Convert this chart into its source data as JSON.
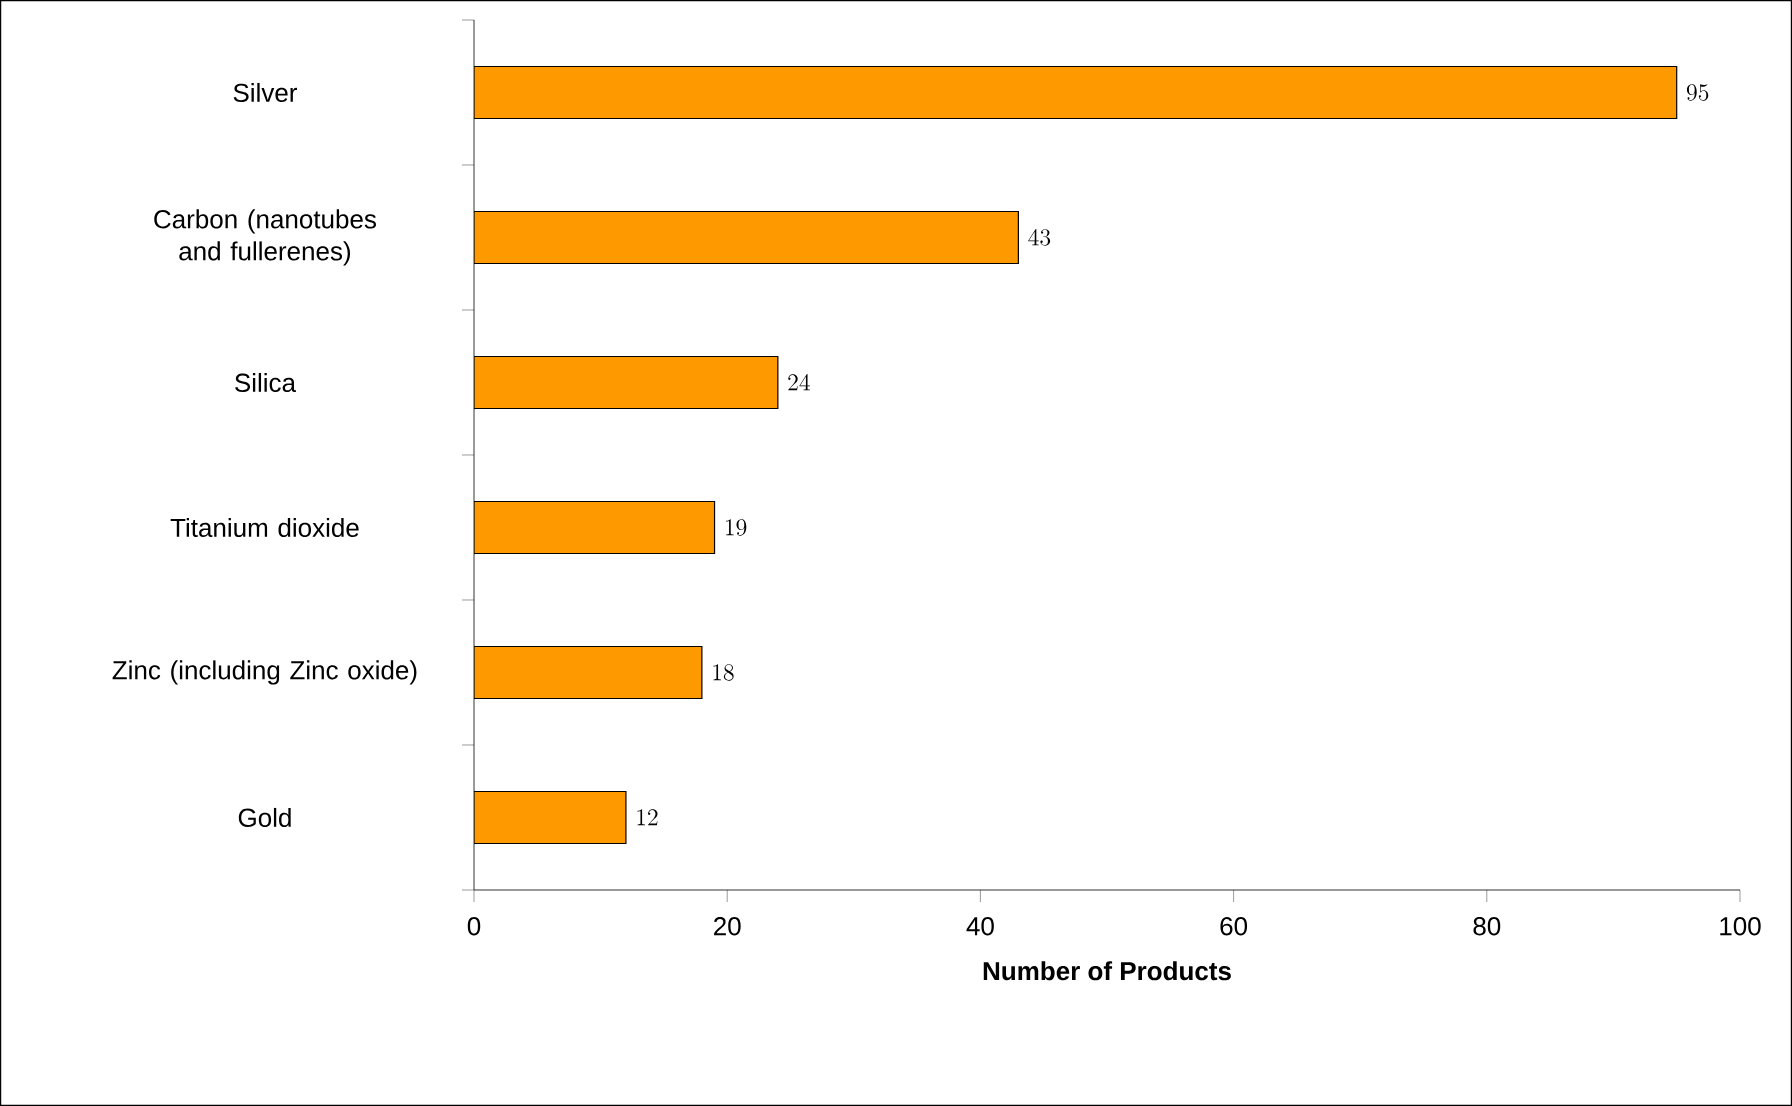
{
  "chart_data": {
    "type": "bar",
    "orientation": "horizontal",
    "xlabel": "Number of Products",
    "categories": [
      "Silver",
      "Carbon (nanotubes and fullerenes)",
      "Silica",
      "Titanium dioxide",
      "Zinc (including Zinc oxide)",
      "Gold"
    ],
    "values": [
      95,
      43,
      24,
      19,
      18,
      12
    ],
    "color": "#ff9900",
    "xlim": [
      0,
      100
    ],
    "xticks": [
      0,
      20,
      40,
      60,
      80,
      100
    ],
    "data_labels": true
  }
}
